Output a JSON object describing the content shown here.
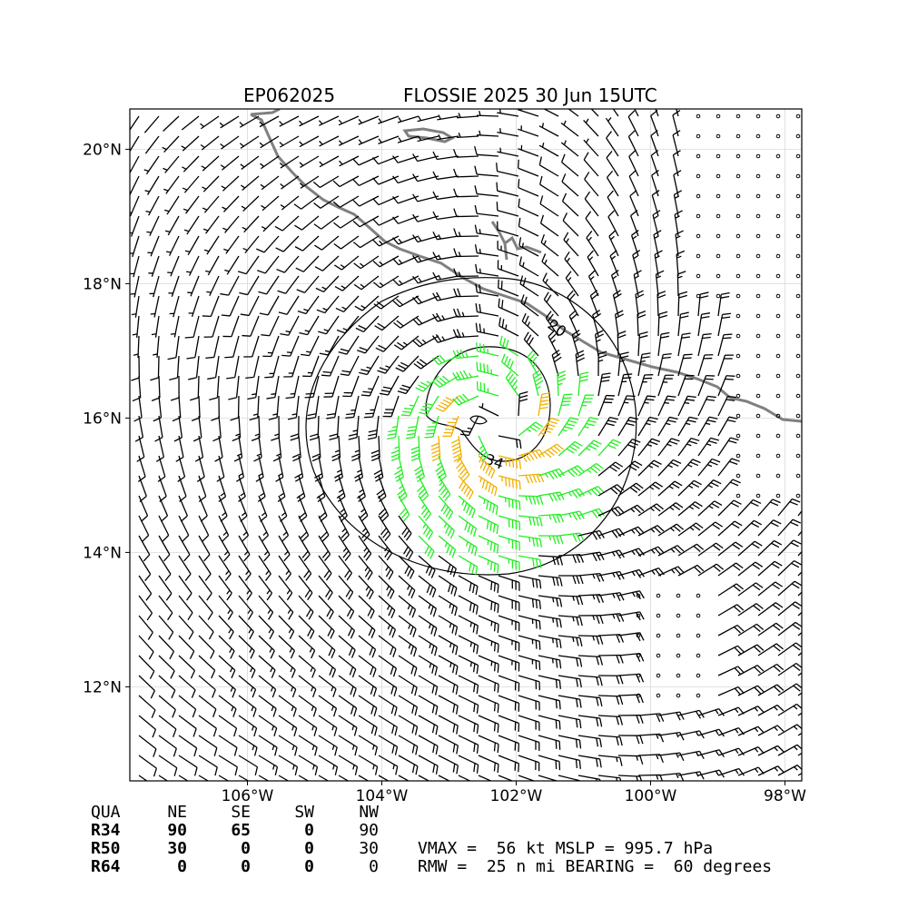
{
  "title": {
    "storm_id": "EP062025",
    "storm_info": "FLOSSIE 2025 30 Jun 15UTC"
  },
  "map": {
    "lon_range": [
      -107.75,
      -97.75
    ],
    "lat_range": [
      10.6,
      20.6
    ],
    "x_ticks": [
      {
        "lon": -106,
        "label": "106°W"
      },
      {
        "lon": -104,
        "label": "104°W"
      },
      {
        "lon": -102,
        "label": "102°W"
      },
      {
        "lon": -100,
        "label": "100°W"
      },
      {
        "lon": -98,
        "label": "98°W"
      }
    ],
    "y_ticks": [
      {
        "lat": 12,
        "label": "12°N"
      },
      {
        "lat": 14,
        "label": "14°N"
      },
      {
        "lat": 16,
        "label": "16°N"
      },
      {
        "lat": 18,
        "label": "18°N"
      },
      {
        "lat": 20,
        "label": "20°N"
      }
    ],
    "grid": true,
    "storm_center": {
      "lon": -102.3,
      "lat": 15.9
    },
    "wind_barb_colors": {
      "below_34": "#000000",
      "34_to_49": "#22ee22",
      "50_to_63": "#f0b000",
      "64_plus": "#ff4400"
    },
    "coastline_color": "#808080",
    "contours": [
      {
        "label": "20",
        "value": 20
      },
      {
        "label": "34",
        "value": 34
      },
      {
        "label": "",
        "value": 50
      }
    ]
  },
  "wind_radii_table": {
    "header": [
      "QUA",
      "NE",
      "SE",
      "SW",
      "NW"
    ],
    "rows": [
      {
        "name": "R34",
        "values": [
          "90",
          "65",
          "0",
          "90"
        ]
      },
      {
        "name": "R50",
        "values": [
          "30",
          "0",
          "0",
          "30"
        ]
      },
      {
        "name": "R64",
        "values": [
          "0",
          "0",
          "0",
          "0"
        ]
      }
    ]
  },
  "summary": {
    "line1": "VMAX =  56 kt MSLP = 995.7 hPa",
    "line2": "RMW =  25 n mi BEARING =  60 degrees"
  }
}
